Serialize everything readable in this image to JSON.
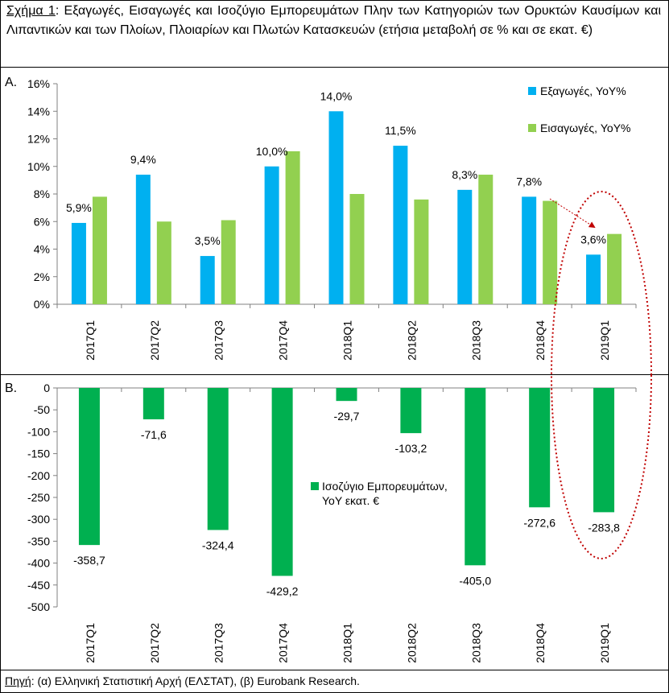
{
  "title": {
    "prefix": "Σχήμα 1",
    "text": ": Εξαγωγές, Εισαγωγές και Ισοζύγιο Εμπορευμάτων Πλην των Κατηγοριών των Ορυκτών Καυσίμων και Λιπαντικών και των Πλοίων, Πλοιαρίων και Πλωτών Κατασκευών (ετήσια μεταβολή σε % και σε εκατ. €)"
  },
  "panel_a_label": "A.",
  "panel_b_label": "B.",
  "source": {
    "prefix": "Πηγή",
    "text": ": (α) Ελληνική Στατιστική Αρχή (ΕΛΣΤΑΤ), (β) Eurobank Research."
  },
  "chart_data": [
    {
      "type": "bar",
      "categories": [
        "2017Q1",
        "2017Q2",
        "2017Q3",
        "2017Q4",
        "2018Q1",
        "2018Q2",
        "2018Q3",
        "2018Q4",
        "2019Q1"
      ],
      "series": [
        {
          "name": "Εξαγωγές, YoY%",
          "color": "#00B0F0",
          "values": [
            5.9,
            9.4,
            3.5,
            10.0,
            14.0,
            11.5,
            8.3,
            7.8,
            3.6
          ]
        },
        {
          "name": "Εισαγωγές, YoY%",
          "color": "#92D050",
          "values": [
            7.8,
            6.0,
            6.1,
            11.1,
            8.0,
            7.6,
            9.4,
            7.5,
            5.1
          ]
        }
      ],
      "data_labels": [
        "5,9%",
        "9,4%",
        "3,5%",
        "10,0%",
        "14,0%",
        "11,5%",
        "8,3%",
        "7,8%",
        "3,6%"
      ],
      "ylim": [
        0,
        16
      ],
      "yticks": [
        "0%",
        "2%",
        "4%",
        "6%",
        "8%",
        "10%",
        "12%",
        "14%",
        "16%"
      ],
      "legend_position": "top-right",
      "grid": false
    },
    {
      "type": "bar",
      "categories": [
        "2017Q1",
        "2017Q2",
        "2017Q3",
        "2017Q4",
        "2018Q1",
        "2018Q2",
        "2018Q3",
        "2018Q4",
        "2019Q1"
      ],
      "series": [
        {
          "name": "Ισοζύγιο Εμπορευμάτων, YoY εκατ. €",
          "color": "#00B050",
          "values": [
            -358.7,
            -71.6,
            -324.4,
            -429.2,
            -29.7,
            -103.2,
            -405.0,
            -272.6,
            -283.8
          ]
        }
      ],
      "data_labels": [
        "-358,7",
        "-71,6",
        "-324,4",
        "-429,2",
        "-29,7",
        "-103,2",
        "-405,0",
        "-272,6",
        "-283,8"
      ],
      "ylim": [
        -500,
        0
      ],
      "yticks": [
        "0",
        "-50",
        "-100",
        "-150",
        "-200",
        "-250",
        "-300",
        "-350",
        "-400",
        "-450",
        "-500"
      ],
      "legend_position": "center",
      "grid": false
    }
  ],
  "legend_b_line1": "Ισοζύγιο Εμπορευμάτων,",
  "legend_b_line2": "YoY εκατ. €",
  "highlight_color": "#C00000"
}
